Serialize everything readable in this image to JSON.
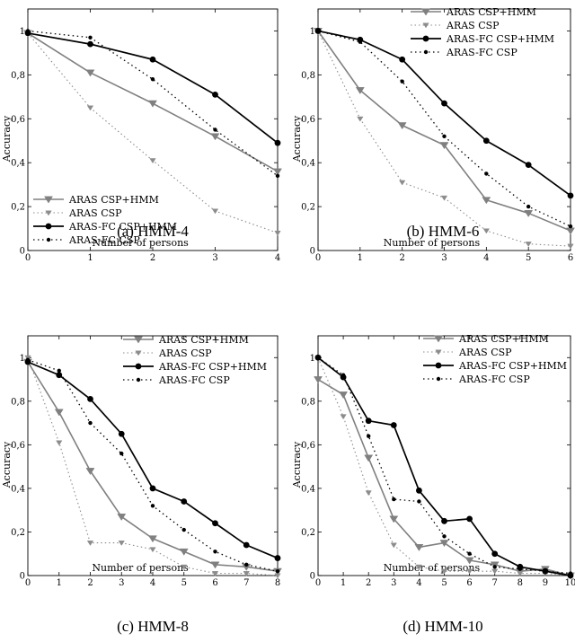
{
  "chart_data": [
    {
      "type": "line",
      "caption": "(a) HMM-4",
      "xlabel": "Number of persons",
      "ylabel": "Accuracy",
      "xlim": [
        0,
        4
      ],
      "ylim": [
        0,
        1.1
      ],
      "xticks": [
        "0",
        "1",
        "2",
        "3",
        "4"
      ],
      "yticks": [
        "0",
        "0,2",
        "0,4",
        "0,6",
        "0,8",
        "1"
      ],
      "legend_position": "bottom-left",
      "series": [
        {
          "name": "ARAS CSP+HMM",
          "x": [
            0,
            1,
            2,
            3,
            4
          ],
          "values": [
            0.99,
            0.81,
            0.67,
            0.52,
            0.36
          ]
        },
        {
          "name": "ARAS CSP",
          "x": [
            0,
            1,
            2,
            3,
            4
          ],
          "values": [
            0.99,
            0.65,
            0.41,
            0.18,
            0.08
          ]
        },
        {
          "name": "ARAS-FC CSP+HMM",
          "x": [
            0,
            1,
            2,
            3,
            4
          ],
          "values": [
            0.99,
            0.94,
            0.87,
            0.71,
            0.49
          ]
        },
        {
          "name": "ARAS-FC CSP",
          "x": [
            0,
            1,
            2,
            3,
            4
          ],
          "values": [
            1.0,
            0.97,
            0.78,
            0.55,
            0.34
          ]
        }
      ]
    },
    {
      "type": "line",
      "caption": "(b) HMM-6",
      "xlabel": "Number of persons",
      "ylabel": "Accuracy",
      "xlim": [
        0,
        6
      ],
      "ylim": [
        0,
        1.1
      ],
      "xticks": [
        "0",
        "1",
        "2",
        "3",
        "4",
        "5",
        "6"
      ],
      "yticks": [
        "0",
        "0,2",
        "0,4",
        "0,6",
        "0,8",
        "1"
      ],
      "legend_position": "top-right",
      "series": [
        {
          "name": "ARAS CSP+HMM",
          "x": [
            0,
            1,
            2,
            3,
            4,
            5,
            6
          ],
          "values": [
            1.0,
            0.73,
            0.57,
            0.48,
            0.23,
            0.17,
            0.09
          ]
        },
        {
          "name": "ARAS CSP",
          "x": [
            0,
            1,
            2,
            3,
            4,
            5,
            6
          ],
          "values": [
            1.0,
            0.6,
            0.31,
            0.24,
            0.09,
            0.03,
            0.02
          ]
        },
        {
          "name": "ARAS-FC CSP+HMM",
          "x": [
            0,
            1,
            2,
            3,
            4,
            5,
            6
          ],
          "values": [
            1.0,
            0.96,
            0.87,
            0.67,
            0.5,
            0.39,
            0.25
          ]
        },
        {
          "name": "ARAS-FC CSP",
          "x": [
            0,
            1,
            2,
            3,
            4,
            5,
            6
          ],
          "values": [
            1.0,
            0.95,
            0.77,
            0.52,
            0.35,
            0.2,
            0.11
          ]
        }
      ]
    },
    {
      "type": "line",
      "caption": "(c) HMM-8",
      "xlabel": "Number of persons",
      "ylabel": "Accuracy",
      "xlim": [
        0,
        8
      ],
      "ylim": [
        0,
        1.1
      ],
      "xticks": [
        "0",
        "1",
        "2",
        "3",
        "4",
        "5",
        "6",
        "7",
        "8"
      ],
      "yticks": [
        "0",
        "0,2",
        "0,4",
        "0,6",
        "0,8",
        "1"
      ],
      "legend_position": "top-right",
      "series": [
        {
          "name": "ARAS CSP+HMM",
          "x": [
            0,
            1,
            2,
            3,
            4,
            5,
            6,
            7,
            8
          ],
          "values": [
            0.98,
            0.75,
            0.48,
            0.27,
            0.17,
            0.11,
            0.05,
            0.04,
            0.02
          ]
        },
        {
          "name": "ARAS CSP",
          "x": [
            0,
            1,
            2,
            3,
            4,
            5,
            6,
            7,
            8
          ],
          "values": [
            1.0,
            0.61,
            0.15,
            0.15,
            0.12,
            0.04,
            0.01,
            0.01,
            0.0
          ]
        },
        {
          "name": "ARAS-FC CSP+HMM",
          "x": [
            0,
            1,
            2,
            3,
            4,
            5,
            6,
            7,
            8
          ],
          "values": [
            0.98,
            0.92,
            0.81,
            0.65,
            0.4,
            0.34,
            0.24,
            0.14,
            0.08
          ]
        },
        {
          "name": "ARAS-FC CSP",
          "x": [
            0,
            1,
            2,
            3,
            4,
            5,
            6,
            7,
            8
          ],
          "values": [
            0.99,
            0.94,
            0.7,
            0.56,
            0.32,
            0.21,
            0.11,
            0.05,
            0.02
          ]
        }
      ]
    },
    {
      "type": "line",
      "caption": "(d) HMM-10",
      "xlabel": "Number of persons",
      "ylabel": "Accuracy",
      "xlim": [
        0,
        10
      ],
      "ylim": [
        0,
        1.1
      ],
      "xticks": [
        "0",
        "1",
        "2",
        "3",
        "4",
        "5",
        "6",
        "7",
        "8",
        "9",
        "10"
      ],
      "yticks": [
        "0",
        "0,2",
        "0,4",
        "0,6",
        "0,8",
        "1"
      ],
      "legend_position": "top-right",
      "series": [
        {
          "name": "ARAS CSP+HMM",
          "x": [
            0,
            1,
            2,
            3,
            4,
            5,
            6,
            7,
            8,
            9,
            10
          ],
          "values": [
            0.9,
            0.83,
            0.54,
            0.26,
            0.13,
            0.15,
            0.07,
            0.05,
            0.02,
            0.03,
            0.0
          ]
        },
        {
          "name": "ARAS CSP",
          "x": [
            0,
            1,
            2,
            3,
            4,
            5,
            6,
            7,
            8,
            9,
            10
          ],
          "values": [
            1.0,
            0.73,
            0.38,
            0.14,
            0.04,
            0.02,
            0.02,
            0.02,
            0.01,
            0.01,
            0.0
          ]
        },
        {
          "name": "ARAS-FC CSP+HMM",
          "x": [
            0,
            1,
            2,
            3,
            4,
            5,
            6,
            7,
            8,
            9,
            10
          ],
          "values": [
            1.0,
            0.91,
            0.71,
            0.69,
            0.39,
            0.25,
            0.26,
            0.1,
            0.04,
            0.02,
            0.0
          ]
        },
        {
          "name": "ARAS-FC CSP",
          "x": [
            0,
            1,
            2,
            3,
            4,
            5,
            6,
            7,
            8,
            9,
            10
          ],
          "values": [
            1.0,
            0.92,
            0.64,
            0.35,
            0.34,
            0.18,
            0.1,
            0.04,
            0.03,
            0.02,
            0.01
          ]
        }
      ]
    }
  ],
  "legend_labels": [
    "ARAS CSP+HMM",
    "ARAS CSP",
    "ARAS-FC CSP+HMM",
    "ARAS-FC CSP"
  ],
  "styles": {
    "aras_csp_hmm_color": "#808080",
    "aras_csp_color": "#8c8c8c",
    "aras_fc_csp_hmm_color": "#000000",
    "aras_fc_csp_color": "#000000"
  }
}
